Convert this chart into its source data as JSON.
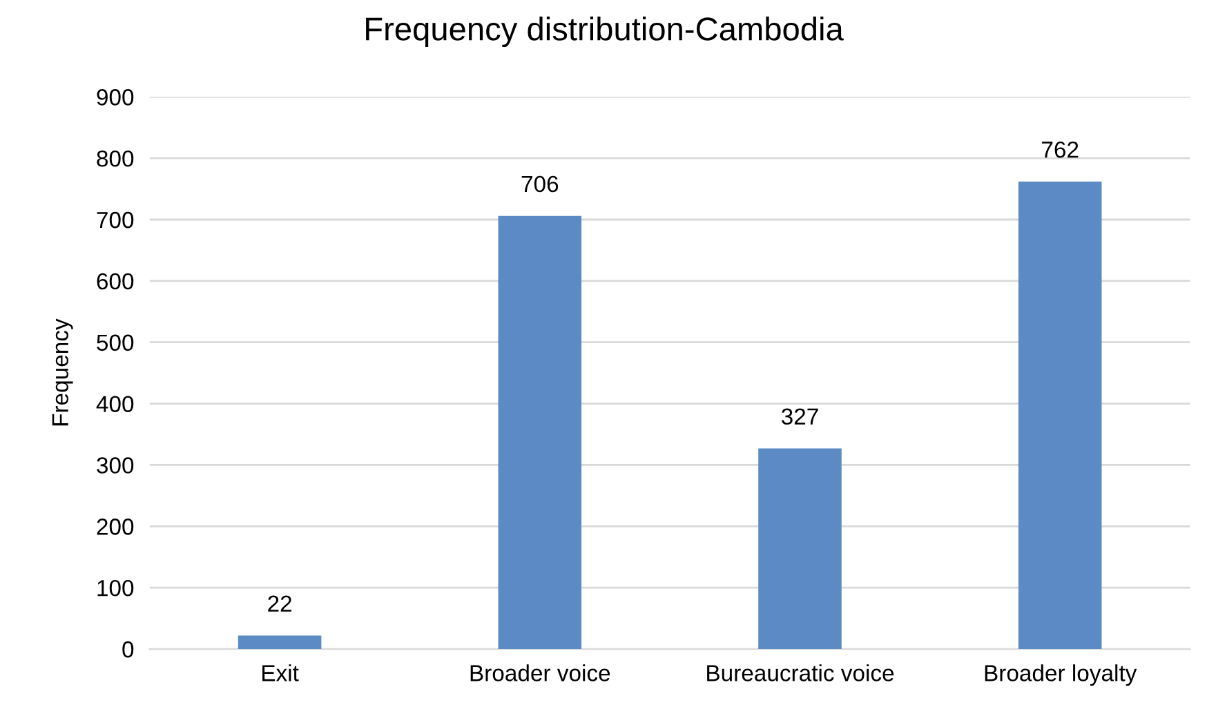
{
  "chart_data": {
    "type": "bar",
    "title": "Frequency distribution-Cambodia",
    "ylabel": "Frequency",
    "categories": [
      "Exit",
      "Broader voice",
      "Bureaucratic voice",
      "Broader loyalty"
    ],
    "values": [
      22,
      706,
      327,
      762
    ],
    "color": "#5b8ac4",
    "ylim": [
      0,
      900
    ],
    "yticks": [
      0,
      100,
      200,
      300,
      400,
      500,
      600,
      700,
      800,
      900
    ],
    "grid": "y",
    "data_labels": true,
    "legend": false
  }
}
